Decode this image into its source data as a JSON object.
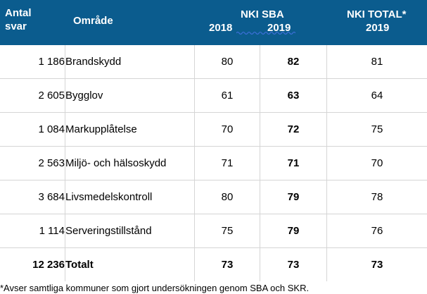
{
  "header": {
    "antal": "Antal",
    "svar": "svar",
    "omrade": "Område",
    "nki_sba": "NKI SBA",
    "year_2018": "2018",
    "year_2019": "2019",
    "nki_total": "NKI TOTAL*",
    "nki_total_year": "2019"
  },
  "rows": [
    {
      "count": "1 186",
      "area": "Brandskydd",
      "sba_2018": "80",
      "sba_2019": "82",
      "total_2019": "81"
    },
    {
      "count": "2 605",
      "area": "Bygglov",
      "sba_2018": "61",
      "sba_2019": "63",
      "total_2019": "64"
    },
    {
      "count": "1 084",
      "area": "Markupplåtelse",
      "sba_2018": "70",
      "sba_2019": "72",
      "total_2019": "75"
    },
    {
      "count": "2 563",
      "area": "Miljö- och hälsoskydd",
      "sba_2018": "71",
      "sba_2019": "71",
      "total_2019": "70"
    },
    {
      "count": "3 684",
      "area": "Livsmedelskontroll",
      "sba_2018": "80",
      "sba_2019": "79",
      "total_2019": "78"
    },
    {
      "count": "1 114",
      "area": "Serveringstillstånd",
      "sba_2018": "75",
      "sba_2019": "79",
      "total_2019": "76"
    }
  ],
  "total": {
    "count": "12 236",
    "area": "Totalt",
    "sba_2018": "73",
    "sba_2019": "73",
    "total_2019": "73"
  },
  "footnote": "*Avser samtliga kommuner som gjort undersökningen genom SBA och SKR.",
  "colors": {
    "header_bg": "#0b5c8e",
    "header_text": "#ffffff",
    "grid_line": "#d5d5d5",
    "squiggle": "#3b6fd6"
  }
}
